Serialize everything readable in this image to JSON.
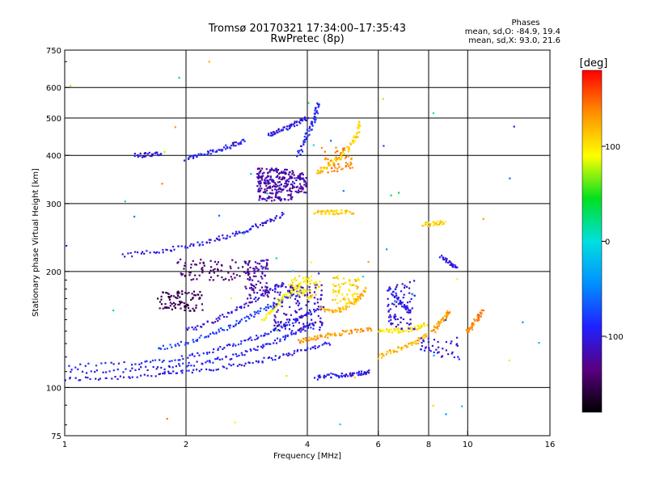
{
  "chart_data": {
    "type": "scatter",
    "title": "Tromsø 20170321 17:34:00–17:35:43",
    "subtitle": "RwPretec (8p)",
    "xlabel": "Frequency [MHz]",
    "ylabel": "Stationary phase Virtual Height [km]",
    "x_scale": "log",
    "y_scale": "log",
    "xlim": [
      1,
      16
    ],
    "ylim": [
      75,
      750
    ],
    "x_ticks": [
      {
        "v": 1,
        "label": "1"
      },
      {
        "v": 2,
        "label": "2"
      },
      {
        "v": 4,
        "label": "4"
      },
      {
        "v": 6,
        "label": "6"
      },
      {
        "v": 8,
        "label": "8"
      },
      {
        "v": 10,
        "label": "10"
      },
      {
        "v": 16,
        "label": "16"
      }
    ],
    "y_ticks": [
      {
        "v": 75,
        "label": "75"
      },
      {
        "v": 100,
        "label": "100"
      },
      {
        "v": 200,
        "label": "200"
      },
      {
        "v": 300,
        "label": "300"
      },
      {
        "v": 400,
        "label": "400"
      },
      {
        "v": 500,
        "label": "500"
      },
      {
        "v": 600,
        "label": "600"
      },
      {
        "v": 750,
        "label": "750"
      }
    ],
    "grid_x": [
      2,
      4,
      6,
      8,
      10
    ],
    "grid_y": [
      100,
      200,
      300,
      400,
      500,
      600
    ],
    "grid": true,
    "stats": {
      "heading": "Phases",
      "o_line": "mean, sd,O: -84.9, 19.4",
      "x_line": "mean, sd,X:  93.0, 21.6"
    },
    "colorbar": {
      "title": "[deg]",
      "range": [
        -180,
        180
      ],
      "ticks": [
        {
          "v": 100,
          "label": "100"
        },
        {
          "v": 0,
          "label": "0"
        },
        {
          "v": -100,
          "label": "-100"
        }
      ],
      "colors": [
        "#000000",
        "#5a0080",
        "#2020ff",
        "#0090ff",
        "#00e0e0",
        "#00e020",
        "#ffff00",
        "#ff9000",
        "#ff0000"
      ]
    },
    "traces": [
      {
        "name": "",
        "phase": -100,
        "pts": [
          [
            1.0,
            105
          ],
          [
            1.3,
            106
          ],
          [
            1.7,
            108
          ],
          [
            2.0,
            110
          ],
          [
            2.5,
            113
          ],
          [
            3.0,
            117
          ],
          [
            3.5,
            121
          ],
          [
            4.0,
            126
          ],
          [
            4.6,
            131
          ]
        ]
      },
      {
        "name": "",
        "phase": -95,
        "pts": [
          [
            1.0,
            110
          ],
          [
            1.4,
            111
          ],
          [
            1.8,
            113
          ],
          [
            2.2,
            116
          ],
          [
            2.6,
            120
          ],
          [
            3.0,
            126
          ],
          [
            3.4,
            133
          ],
          [
            3.8,
            140
          ],
          [
            4.2,
            147
          ]
        ]
      },
      {
        "name": "",
        "phase": -90,
        "pts": [
          [
            1.0,
            113
          ],
          [
            1.5,
            116
          ],
          [
            1.9,
            119
          ],
          [
            2.3,
            124
          ],
          [
            2.7,
            130
          ],
          [
            3.1,
            137
          ],
          [
            3.5,
            145
          ],
          [
            4.0,
            155
          ],
          [
            4.4,
            162
          ]
        ]
      },
      {
        "name": "",
        "phase": -80,
        "pts": [
          [
            1.7,
            126
          ],
          [
            2.0,
            131
          ],
          [
            2.3,
            137
          ],
          [
            2.6,
            145
          ],
          [
            2.9,
            153
          ],
          [
            3.2,
            162
          ],
          [
            3.5,
            170
          ],
          [
            3.9,
            178
          ]
        ]
      },
      {
        "name": "",
        "phase": -105,
        "pts": [
          [
            2.0,
            140
          ],
          [
            2.3,
            148
          ],
          [
            2.6,
            157
          ],
          [
            2.9,
            167
          ],
          [
            3.2,
            177
          ],
          [
            3.5,
            188
          ]
        ]
      },
      {
        "name": "",
        "phase": -100,
        "pts": [
          [
            1.4,
            220
          ],
          [
            1.7,
            226
          ],
          [
            2.0,
            232
          ],
          [
            2.3,
            240
          ],
          [
            2.6,
            249
          ],
          [
            2.9,
            258
          ],
          [
            3.2,
            270
          ],
          [
            3.5,
            282
          ]
        ]
      },
      {
        "name": "",
        "phase": -95,
        "pts": [
          [
            2.0,
            392
          ],
          [
            2.2,
            402
          ],
          [
            2.4,
            413
          ],
          [
            2.6,
            425
          ],
          [
            2.8,
            437
          ]
        ]
      },
      {
        "name": "",
        "phase": -100,
        "pts": [
          [
            3.2,
            452
          ],
          [
            3.4,
            463
          ],
          [
            3.6,
            475
          ],
          [
            3.8,
            488
          ],
          [
            4.0,
            500
          ]
        ]
      },
      {
        "name": "",
        "phase": -90,
        "pts": [
          [
            3.8,
            400
          ],
          [
            3.95,
            440
          ],
          [
            4.1,
            480
          ],
          [
            4.2,
            510
          ],
          [
            4.25,
            545
          ]
        ]
      },
      {
        "name": "",
        "phase": -100,
        "pts": [
          [
            1.5,
            400
          ],
          [
            1.6,
            402
          ],
          [
            1.75,
            404
          ]
        ]
      },
      {
        "name": "",
        "phase": -100,
        "pts": [
          [
            4.2,
            106
          ],
          [
            4.6,
            107
          ],
          [
            5.0,
            108
          ],
          [
            5.4,
            109
          ],
          [
            5.7,
            110
          ]
        ]
      },
      {
        "name": "",
        "phase": 130,
        "pts": [
          [
            3.8,
            132
          ],
          [
            4.1,
            134
          ],
          [
            4.4,
            136
          ],
          [
            4.8,
            138
          ],
          [
            5.3,
            141
          ],
          [
            5.8,
            142
          ]
        ]
      },
      {
        "name": "",
        "phase": 120,
        "pts": [
          [
            4.3,
            160
          ],
          [
            4.6,
            158
          ],
          [
            4.9,
            160
          ],
          [
            5.2,
            166
          ],
          [
            5.4,
            172
          ],
          [
            5.6,
            180
          ]
        ]
      },
      {
        "name": "",
        "phase": 110,
        "pts": [
          [
            4.2,
            360
          ],
          [
            4.5,
            375
          ],
          [
            4.8,
            395
          ],
          [
            5.1,
            420
          ],
          [
            5.3,
            450
          ],
          [
            5.45,
            490
          ]
        ]
      },
      {
        "name": "",
        "phase": 100,
        "pts": [
          [
            3.1,
            150
          ],
          [
            3.3,
            160
          ],
          [
            3.5,
            172
          ],
          [
            3.7,
            180
          ],
          [
            3.9,
            186
          ]
        ]
      },
      {
        "name": "",
        "phase": 100,
        "pts": [
          [
            6.0,
            140
          ],
          [
            6.5,
            140
          ],
          [
            7.0,
            141
          ],
          [
            7.5,
            143
          ],
          [
            7.9,
            146
          ]
        ]
      },
      {
        "name": "",
        "phase": 120,
        "pts": [
          [
            6.0,
            120
          ],
          [
            6.5,
            124
          ],
          [
            7.0,
            128
          ],
          [
            7.5,
            132
          ],
          [
            8.0,
            137
          ]
        ]
      },
      {
        "name": "",
        "phase": 130,
        "pts": [
          [
            8.2,
            140
          ],
          [
            8.5,
            146
          ],
          [
            8.8,
            153
          ],
          [
            9.0,
            158
          ]
        ]
      },
      {
        "name": "",
        "phase": 140,
        "pts": [
          [
            10.0,
            140
          ],
          [
            10.3,
            145
          ],
          [
            10.6,
            152
          ],
          [
            10.9,
            158
          ]
        ]
      },
      {
        "name": "",
        "phase": 110,
        "pts": [
          [
            4.2,
            285
          ],
          [
            4.5,
            285
          ],
          [
            4.8,
            285
          ],
          [
            5.2,
            285
          ]
        ]
      },
      {
        "name": "",
        "phase": 110,
        "pts": [
          [
            7.8,
            265
          ],
          [
            8.3,
            266
          ],
          [
            8.8,
            268
          ]
        ]
      },
      {
        "name": "",
        "phase": -100,
        "pts": [
          [
            8.6,
            218
          ],
          [
            9.0,
            210
          ],
          [
            9.4,
            205
          ]
        ]
      },
      {
        "name": "",
        "phase": -95,
        "pts": [
          [
            6.4,
            180
          ],
          [
            6.7,
            170
          ],
          [
            7.0,
            162
          ],
          [
            7.2,
            157
          ]
        ]
      }
    ],
    "clusters": [
      {
        "name": "",
        "phase": -120,
        "fx": [
          3.0,
          3.7
        ],
        "hy": [
          305,
          370
        ],
        "n": 230
      },
      {
        "name": "",
        "phase": -120,
        "fx": [
          3.7,
          4.0
        ],
        "hy": [
          320,
          360
        ],
        "n": 50
      },
      {
        "name": "",
        "phase": -150,
        "fx": [
          1.7,
          2.2
        ],
        "hy": [
          158,
          178
        ],
        "n": 90
      },
      {
        "name": "",
        "phase": -140,
        "fx": [
          1.9,
          2.9
        ],
        "hy": [
          190,
          215
        ],
        "n": 80
      },
      {
        "name": "",
        "phase": -120,
        "fx": [
          2.8,
          3.2
        ],
        "hy": [
          170,
          215
        ],
        "n": 80
      },
      {
        "name": "",
        "phase": -110,
        "fx": [
          3.3,
          4.4
        ],
        "hy": [
          140,
          185
        ],
        "n": 140
      },
      {
        "name": "",
        "phase": 100,
        "fx": [
          3.6,
          4.3
        ],
        "hy": [
          170,
          195
        ],
        "n": 60
      },
      {
        "name": "",
        "phase": 110,
        "fx": [
          4.6,
          5.4
        ],
        "hy": [
          165,
          195
        ],
        "n": 60
      },
      {
        "name": "",
        "phase": -105,
        "fx": [
          6.3,
          7.4
        ],
        "hy": [
          140,
          190
        ],
        "n": 70
      },
      {
        "name": "",
        "phase": -100,
        "fx": [
          7.6,
          9.6
        ],
        "hy": [
          118,
          135
        ],
        "n": 40
      },
      {
        "name": "",
        "phase": 140,
        "fx": [
          4.3,
          5.2
        ],
        "hy": [
          360,
          420
        ],
        "n": 50
      },
      {
        "name": "",
        "phase": 20,
        "fx": [
          1.0,
          16.0
        ],
        "hy": [
          78,
          700
        ],
        "n": 55
      }
    ]
  }
}
